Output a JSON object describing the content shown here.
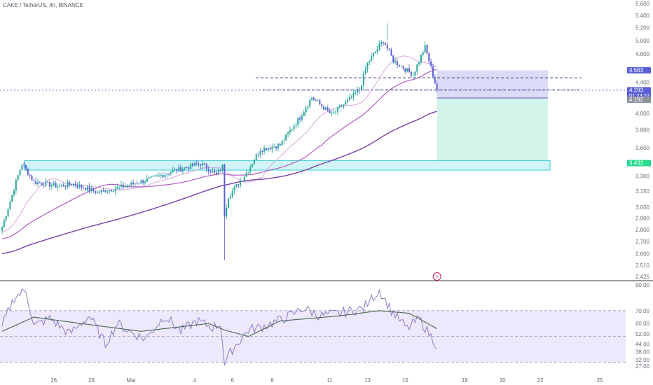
{
  "header": {
    "title": "CAKE / TetherUS, 4h, BINANCE"
  },
  "colors": {
    "up": "#26a69a",
    "down": "#5b5fd6",
    "ma_fast": "#d9a6e0",
    "ma_mid": "#b05cc4",
    "ma_slow": "#7c3fa8",
    "rsi_line": "#8e7cc3",
    "rsi_ma": "#4a6650",
    "rsi_band": "#ede8fb",
    "zone": "#cdf3f6",
    "zone_border": "#26c6da",
    "tp_zone": "#d3f4ea",
    "sl_zone": "#dcdbf7",
    "price_tag": "#5b5fd6",
    "level_tag": "#8d939a",
    "support_tag": "#26d98b"
  },
  "chart_data": [
    {
      "type": "candlestick",
      "title": "CAKE / TetherUS, 4h, BINANCE",
      "xlabel": "",
      "ylabel": "",
      "y_scale": "log",
      "ylim": [
        2.425,
        5.6
      ],
      "y_ticks": [
        "5.600",
        "5.400",
        "5.200",
        "5.000",
        "4.800",
        "4.400",
        "4.000",
        "3.800",
        "3.600",
        "3.300",
        "3.150",
        "3.000",
        "2.900",
        "2.800",
        "2.700",
        "2.600",
        "2.510",
        "2.425"
      ],
      "x_ticks": [
        "26",
        "28",
        "Mar",
        "4",
        "6",
        "8",
        "11",
        "13",
        "15",
        "18",
        "20",
        "22",
        "25"
      ],
      "x_tick_index": [
        26,
        45,
        65,
        97,
        116,
        136,
        165,
        184,
        203,
        233,
        252,
        271,
        301
      ],
      "current_price": "4.293",
      "countdown": "01:23:27",
      "levels": {
        "take_profit": "4.563",
        "stop": "4.192",
        "support_label": "3.433"
      },
      "annotations": [
        "⚡"
      ],
      "key_points": [
        {
          "i": 0,
          "close": 2.82
        },
        {
          "i": 4,
          "close": 3.05
        },
        {
          "i": 10,
          "close": 3.43
        },
        {
          "i": 16,
          "close": 3.24
        },
        {
          "i": 28,
          "close": 3.2
        },
        {
          "i": 36,
          "close": 3.22
        },
        {
          "i": 48,
          "close": 3.14
        },
        {
          "i": 60,
          "close": 3.19
        },
        {
          "i": 75,
          "close": 3.27
        },
        {
          "i": 86,
          "close": 3.35
        },
        {
          "i": 100,
          "close": 3.43
        },
        {
          "i": 108,
          "close": 3.31
        },
        {
          "i": 111,
          "close": 3.4
        },
        {
          "i": 112,
          "close": 2.93
        },
        {
          "i": 114,
          "close": 3.1
        },
        {
          "i": 118,
          "close": 3.2
        },
        {
          "i": 123,
          "close": 3.33
        },
        {
          "i": 130,
          "close": 3.58
        },
        {
          "i": 140,
          "close": 3.63
        },
        {
          "i": 150,
          "close": 3.95
        },
        {
          "i": 156,
          "close": 4.2
        },
        {
          "i": 166,
          "close": 3.98
        },
        {
          "i": 174,
          "close": 4.15
        },
        {
          "i": 180,
          "close": 4.3
        },
        {
          "i": 184,
          "close": 4.66
        },
        {
          "i": 192,
          "close": 5.0
        },
        {
          "i": 197,
          "close": 4.7
        },
        {
          "i": 207,
          "close": 4.5
        },
        {
          "i": 213,
          "close": 4.9
        },
        {
          "i": 219,
          "close": 4.293
        }
      ]
    },
    {
      "type": "line",
      "title": "",
      "ylim": [
        27,
        90
      ],
      "y_ticks": [
        "90.00",
        "70.00",
        "60.00",
        "52.00",
        "44.00",
        "38.00",
        "32.00",
        "27.00"
      ],
      "bands": {
        "upper": 70,
        "middle": 50,
        "lower": 30
      },
      "series": [
        {
          "key_points": [
            {
              "i": 0,
              "v": 58
            },
            {
              "i": 6,
              "v": 80
            },
            {
              "i": 12,
              "v": 86
            },
            {
              "i": 16,
              "v": 58
            },
            {
              "i": 24,
              "v": 64
            },
            {
              "i": 34,
              "v": 52
            },
            {
              "i": 44,
              "v": 66
            },
            {
              "i": 52,
              "v": 44
            },
            {
              "i": 58,
              "v": 60
            },
            {
              "i": 64,
              "v": 54
            },
            {
              "i": 72,
              "v": 48
            },
            {
              "i": 82,
              "v": 66
            },
            {
              "i": 90,
              "v": 54
            },
            {
              "i": 98,
              "v": 62
            },
            {
              "i": 106,
              "v": 57
            },
            {
              "i": 110,
              "v": 60
            },
            {
              "i": 112,
              "v": 29
            },
            {
              "i": 116,
              "v": 40
            },
            {
              "i": 124,
              "v": 55
            },
            {
              "i": 132,
              "v": 58
            },
            {
              "i": 142,
              "v": 64
            },
            {
              "i": 152,
              "v": 72
            },
            {
              "i": 160,
              "v": 66
            },
            {
              "i": 170,
              "v": 68
            },
            {
              "i": 182,
              "v": 72
            },
            {
              "i": 190,
              "v": 86
            },
            {
              "i": 196,
              "v": 70
            },
            {
              "i": 204,
              "v": 56
            },
            {
              "i": 210,
              "v": 64
            },
            {
              "i": 219,
              "v": 43
            }
          ]
        },
        {
          "key_points": [
            {
              "i": 0,
              "v": 54
            },
            {
              "i": 16,
              "v": 65
            },
            {
              "i": 40,
              "v": 60
            },
            {
              "i": 70,
              "v": 54
            },
            {
              "i": 104,
              "v": 60
            },
            {
              "i": 112,
              "v": 55
            },
            {
              "i": 124,
              "v": 50
            },
            {
              "i": 140,
              "v": 62
            },
            {
              "i": 170,
              "v": 66
            },
            {
              "i": 190,
              "v": 70
            },
            {
              "i": 205,
              "v": 68
            },
            {
              "i": 219,
              "v": 56
            }
          ]
        }
      ]
    }
  ]
}
